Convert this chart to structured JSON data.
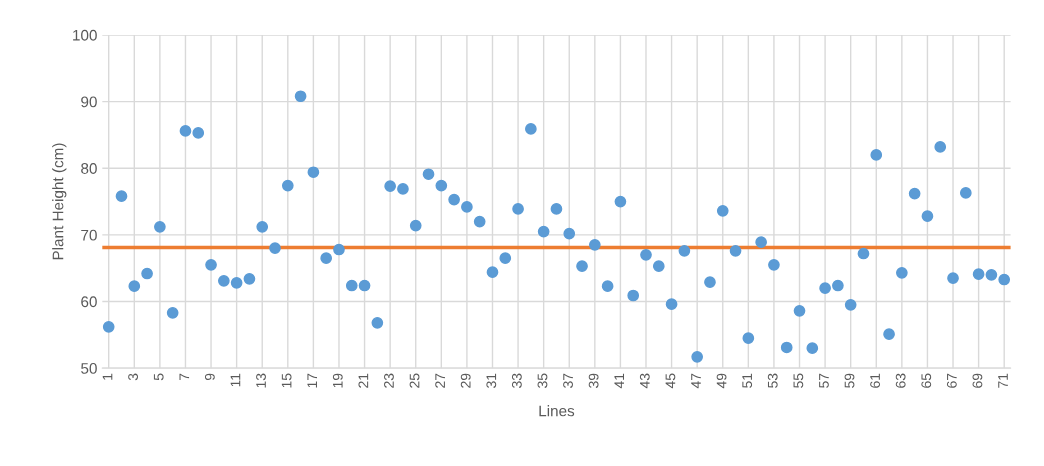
{
  "chart_data": {
    "type": "scatter",
    "xlabel": "Lines",
    "ylabel": "Plant Height (cm)",
    "categories": [
      "1",
      null,
      "3",
      null,
      "5",
      null,
      "7",
      null,
      "9",
      null,
      "11",
      null,
      "13",
      null,
      "15",
      null,
      "17",
      null,
      "19",
      null,
      "21",
      null,
      "23",
      null,
      "25",
      null,
      "27",
      null,
      "29",
      null,
      "31",
      null,
      "33",
      null,
      "35",
      null,
      "37",
      null,
      "39",
      null,
      "41",
      null,
      "43",
      null,
      "45",
      null,
      "47",
      null,
      "49",
      null,
      "51",
      null,
      "53",
      null,
      "55",
      null,
      "57",
      null,
      "59",
      null,
      "61",
      null,
      "63",
      null,
      "65",
      null,
      "67",
      null,
      "69",
      null,
      "71"
    ],
    "series": [
      {
        "color": "#5b9bd5",
        "values": [
          56.2,
          75.8,
          62.3,
          64.2,
          71.2,
          58.3,
          85.6,
          85.3,
          65.5,
          63.1,
          62.8,
          63.4,
          71.2,
          68.0,
          77.4,
          90.8,
          79.4,
          66.5,
          67.8,
          62.4,
          62.4,
          56.8,
          77.3,
          76.9,
          71.4,
          79.1,
          77.4,
          75.3,
          74.2,
          72.0,
          64.4,
          66.5,
          73.9,
          85.9,
          70.5,
          73.9,
          70.2,
          65.3,
          68.5,
          62.3,
          75.0,
          60.9,
          67.0,
          65.3,
          59.6,
          67.6,
          51.7,
          62.9,
          73.6,
          67.6,
          54.5,
          68.9,
          65.5,
          53.1,
          58.6,
          53.0,
          62.0,
          62.4,
          59.5,
          67.2,
          82.0,
          55.1,
          64.3,
          76.2,
          72.8,
          83.2,
          63.5,
          76.3,
          64.1,
          64.0,
          63.3
        ]
      }
    ],
    "ylim": [
      50,
      100
    ],
    "yticks": [
      50,
      60,
      70,
      80,
      90,
      100
    ],
    "ref_lines": [
      {
        "axis": "y",
        "value": 68.1,
        "color": "#ed7d31"
      }
    ],
    "grid": true,
    "marker": "circle",
    "legend": false
  }
}
